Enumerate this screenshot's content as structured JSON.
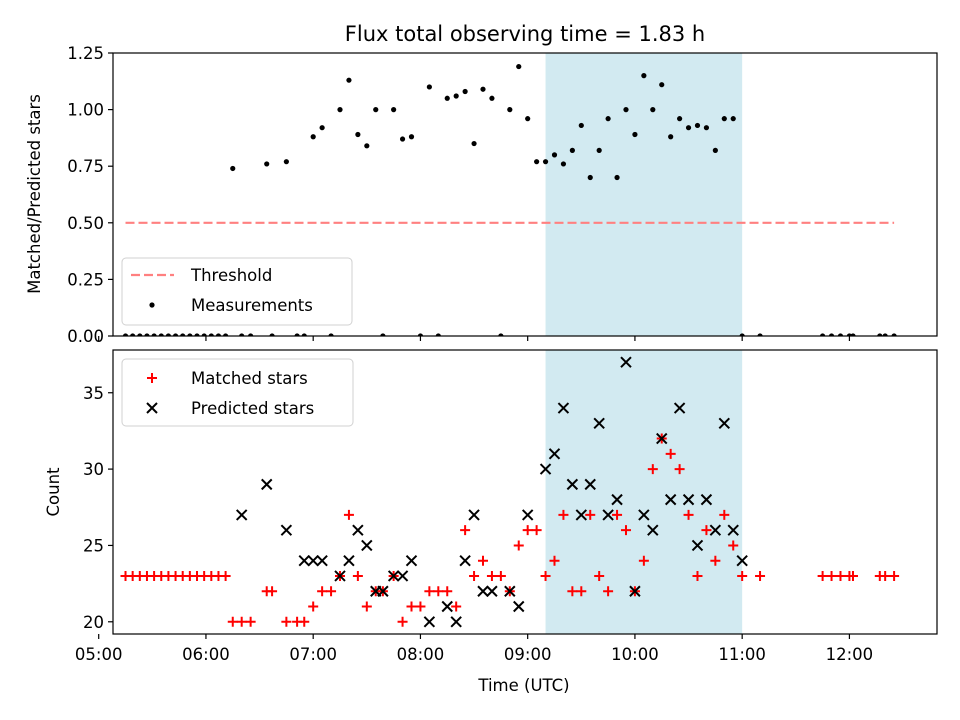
{
  "colors": {
    "band": "#add8e6",
    "threshold": "#ff8080",
    "measurement": "#000000",
    "matched": "#ff0000",
    "predicted": "#000000"
  },
  "chart_data": [
    {
      "type": "scatter",
      "title": "Flux total observing time = 1.83 h",
      "xlabel": "",
      "ylabel": "Matched/Predicted stars",
      "xlim": [
        "05:08",
        "12:49"
      ],
      "ylim": [
        0,
        1.25
      ],
      "yticks": [
        "0.00",
        "0.25",
        "0.50",
        "0.75",
        "1.00",
        "1.25"
      ],
      "grid": false,
      "legend_position": "lower-left",
      "shaded_span": {
        "x": [
          "09:10",
          "11:00"
        ],
        "color": "#add8e6"
      },
      "threshold": {
        "name": "Threshold",
        "y": 0.5,
        "x": [
          "05:15",
          "12:25"
        ],
        "style": "dashed"
      },
      "series": [
        {
          "name": "Measurements",
          "x": [
            "05:15",
            "05:19",
            "05:23",
            "05:27",
            "05:31",
            "05:35",
            "05:39",
            "05:43",
            "05:47",
            "05:51",
            "05:55",
            "05:59",
            "06:03",
            "06:07",
            "06:11",
            "06:15",
            "06:20",
            "06:25",
            "06:34",
            "06:37",
            "06:45",
            "06:51",
            "06:55",
            "07:00",
            "07:05",
            "07:10",
            "07:15",
            "07:20",
            "07:25",
            "07:30",
            "07:35",
            "07:39",
            "07:45",
            "07:50",
            "07:55",
            "08:00",
            "08:05",
            "08:10",
            "08:15",
            "08:20",
            "08:25",
            "08:30",
            "08:35",
            "08:40",
            "08:45",
            "08:50",
            "08:55",
            "09:00",
            "09:05",
            "09:10",
            "09:15",
            "09:20",
            "09:25",
            "09:30",
            "09:35",
            "09:40",
            "09:45",
            "09:50",
            "09:55",
            "10:00",
            "10:05",
            "10:10",
            "10:15",
            "10:20",
            "10:25",
            "10:30",
            "10:35",
            "10:40",
            "10:45",
            "10:50",
            "10:55",
            "11:00",
            "11:10",
            "11:45",
            "11:50",
            "11:55",
            "12:00",
            "12:02",
            "12:17",
            "12:20",
            "12:25"
          ],
          "y": [
            0,
            0,
            0,
            0,
            0,
            0,
            0,
            0,
            0,
            0,
            0,
            0,
            0,
            0,
            0,
            0.74,
            0,
            0,
            0.76,
            0,
            0.77,
            0,
            0,
            0.88,
            0.92,
            0,
            1.0,
            1.13,
            0.89,
            0.84,
            1.0,
            0,
            1.0,
            0.87,
            0.88,
            0,
            1.1,
            0,
            1.05,
            1.06,
            1.08,
            0.85,
            1.09,
            1.05,
            0,
            1.0,
            1.19,
            0.96,
            0.77,
            0.77,
            0.8,
            0.76,
            0.82,
            0.93,
            0.7,
            0.82,
            0.96,
            0.7,
            1.0,
            0.89,
            1.15,
            1.0,
            1.11,
            0.88,
            0.96,
            0.92,
            0.93,
            0.92,
            0.82,
            0.96,
            0.96,
            0,
            0,
            0,
            0,
            0,
            0,
            0,
            0,
            0,
            0
          ]
        }
      ]
    },
    {
      "type": "scatter",
      "title": "",
      "xlabel": "Time (UTC)",
      "ylabel": "Count",
      "xlim": [
        "05:08",
        "12:49"
      ],
      "ylim": [
        19.2,
        37.8
      ],
      "yticks": [
        "20",
        "25",
        "30",
        "35"
      ],
      "xticks": [
        "05:00",
        "06:00",
        "07:00",
        "08:00",
        "09:00",
        "10:00",
        "11:00",
        "12:00"
      ],
      "grid": false,
      "legend_position": "upper-left",
      "shaded_span": {
        "x": [
          "09:10",
          "11:00"
        ],
        "color": "#add8e6"
      },
      "series": [
        {
          "name": "Matched stars",
          "marker": "plus",
          "x": [
            "05:15",
            "05:19",
            "05:23",
            "05:27",
            "05:31",
            "05:35",
            "05:39",
            "05:43",
            "05:47",
            "05:51",
            "05:55",
            "05:59",
            "06:03",
            "06:07",
            "06:11",
            "06:15",
            "06:20",
            "06:25",
            "06:34",
            "06:37",
            "06:45",
            "06:51",
            "06:55",
            "07:00",
            "07:05",
            "07:10",
            "07:15",
            "07:20",
            "07:25",
            "07:30",
            "07:35",
            "07:39",
            "07:45",
            "07:50",
            "07:55",
            "08:00",
            "08:05",
            "08:10",
            "08:15",
            "08:20",
            "08:25",
            "08:30",
            "08:35",
            "08:40",
            "08:45",
            "08:50",
            "08:55",
            "09:00",
            "09:05",
            "09:10",
            "09:15",
            "09:20",
            "09:25",
            "09:30",
            "09:35",
            "09:40",
            "09:45",
            "09:50",
            "09:55",
            "10:00",
            "10:05",
            "10:10",
            "10:15",
            "10:20",
            "10:25",
            "10:30",
            "10:35",
            "10:40",
            "10:45",
            "10:50",
            "10:55",
            "11:00",
            "11:10",
            "11:45",
            "11:50",
            "11:55",
            "12:00",
            "12:02",
            "12:17",
            "12:20",
            "12:25"
          ],
          "y": [
            23,
            23,
            23,
            23,
            23,
            23,
            23,
            23,
            23,
            23,
            23,
            23,
            23,
            23,
            23,
            20,
            20,
            20,
            22,
            22,
            20,
            20,
            20,
            21,
            22,
            22,
            23,
            27,
            23,
            21,
            22,
            22,
            23,
            20,
            21,
            21,
            22,
            22,
            22,
            21,
            26,
            23,
            24,
            23,
            23,
            22,
            25,
            26,
            26,
            23,
            24,
            27,
            22,
            22,
            27,
            23,
            22,
            27,
            26,
            22,
            24,
            30,
            32,
            31,
            30,
            27,
            23,
            26,
            24,
            27,
            25,
            23,
            23,
            23,
            23,
            23,
            23,
            23,
            23,
            23,
            23
          ]
        },
        {
          "name": "Predicted stars",
          "marker": "x",
          "x": [
            "06:20",
            "06:34",
            "06:45",
            "06:55",
            "07:00",
            "07:05",
            "07:15",
            "07:20",
            "07:25",
            "07:30",
            "07:35",
            "07:39",
            "07:45",
            "07:50",
            "07:55",
            "08:05",
            "08:15",
            "08:20",
            "08:25",
            "08:30",
            "08:35",
            "08:40",
            "08:50",
            "08:55",
            "09:00",
            "09:10",
            "09:15",
            "09:20",
            "09:25",
            "09:30",
            "09:35",
            "09:40",
            "09:45",
            "09:50",
            "09:55",
            "10:00",
            "10:05",
            "10:10",
            "10:15",
            "10:20",
            "10:25",
            "10:30",
            "10:35",
            "10:40",
            "10:45",
            "10:50",
            "10:55",
            "11:00"
          ],
          "y": [
            27,
            29,
            26,
            24,
            24,
            24,
            23,
            24,
            26,
            25,
            22,
            22,
            23,
            23,
            24,
            20,
            21,
            20,
            24,
            27,
            22,
            22,
            22,
            21,
            27,
            30,
            31,
            34,
            29,
            27,
            29,
            33,
            27,
            28,
            37,
            22,
            27,
            26,
            32,
            28,
            34,
            28,
            25,
            28,
            26,
            33,
            26,
            24
          ]
        }
      ]
    }
  ]
}
